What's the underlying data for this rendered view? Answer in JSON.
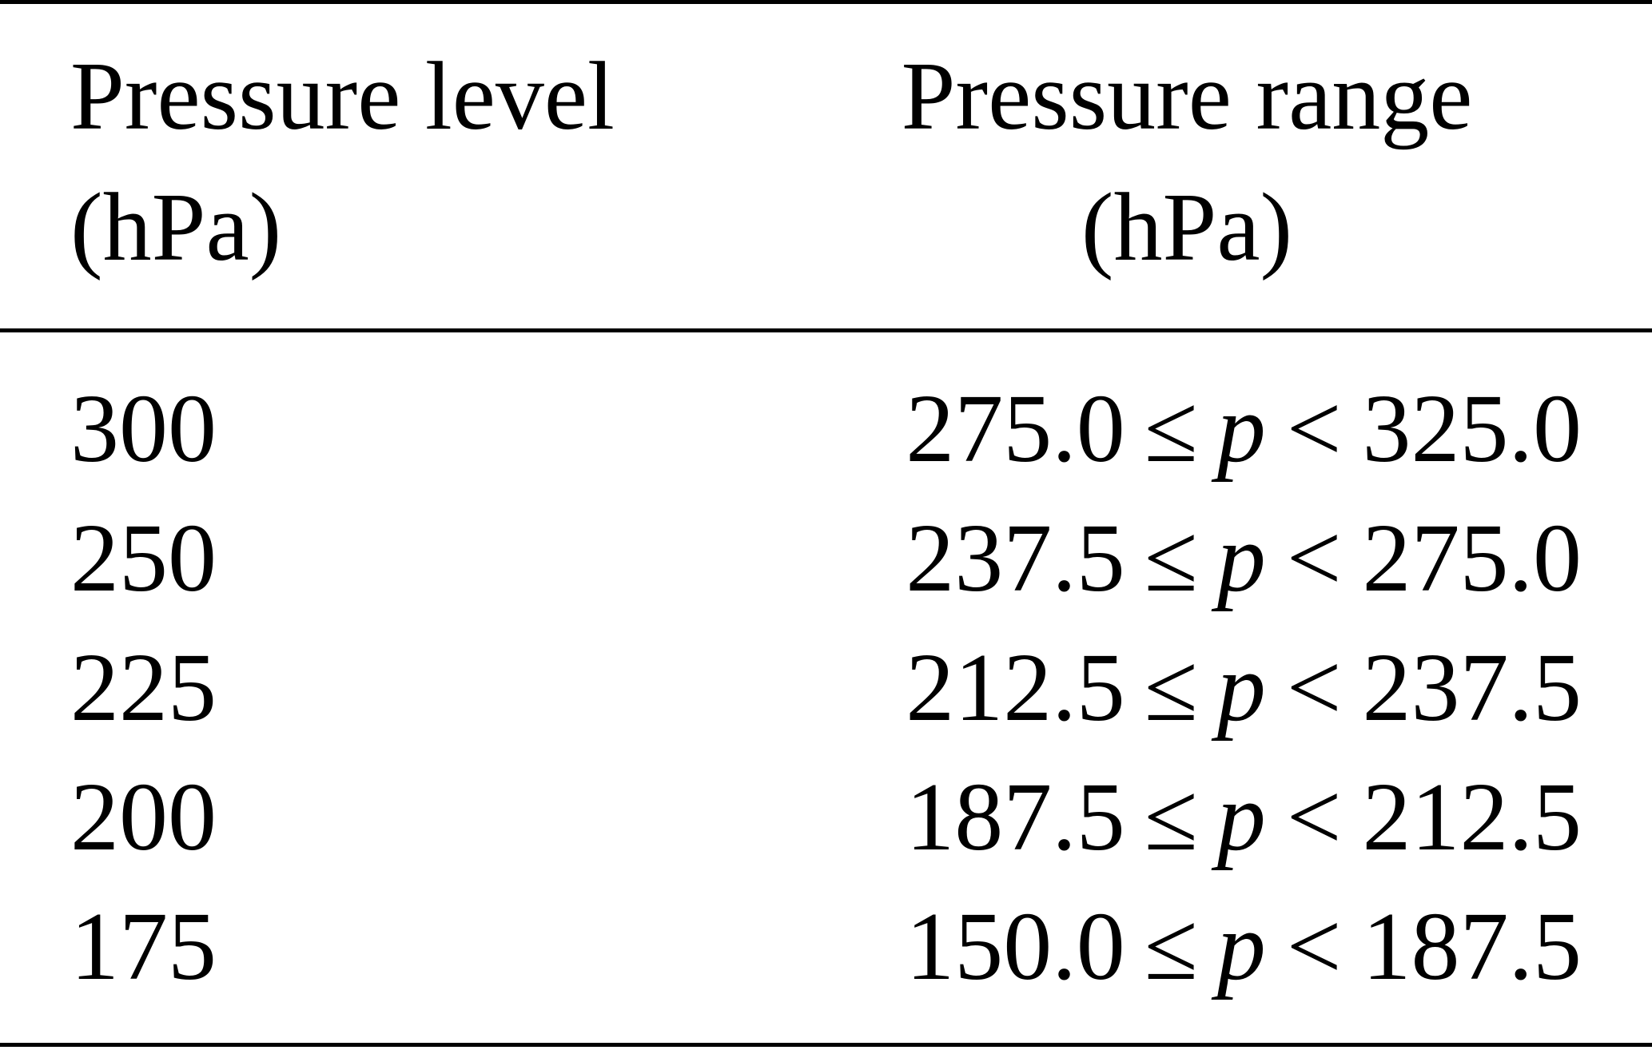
{
  "table": {
    "headers": {
      "level_line1": "Pressure level",
      "level_line2": "(hPa)",
      "range_line1": "Pressure range",
      "range_line2": "(hPa)"
    },
    "symbols": {
      "leq": "≤",
      "lt": "<",
      "var": "p"
    },
    "rows": [
      {
        "level": "300",
        "lower": "275.0",
        "upper": "325.0"
      },
      {
        "level": "250",
        "lower": "237.5",
        "upper": "275.0"
      },
      {
        "level": "225",
        "lower": "212.5",
        "upper": "237.5"
      },
      {
        "level": "200",
        "lower": "187.5",
        "upper": "212.5"
      },
      {
        "level": "175",
        "lower": "150.0",
        "upper": "187.5"
      }
    ]
  }
}
